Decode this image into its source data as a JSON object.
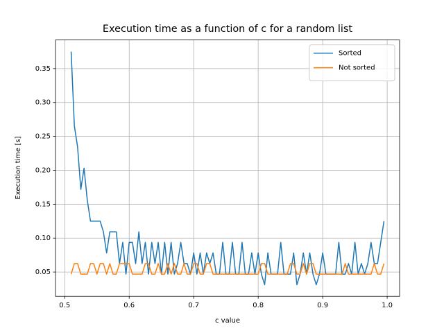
{
  "chart_data": {
    "type": "line",
    "title": "Execution time as a function of c for a random list",
    "x_label": "c value",
    "y_label": "Execution time [s]",
    "x": [
      0.51,
      0.515,
      0.52,
      0.525,
      0.53,
      0.535,
      0.54,
      0.545,
      0.55,
      0.555,
      0.56,
      0.565,
      0.57,
      0.575,
      0.58,
      0.585,
      0.59,
      0.595,
      0.6,
      0.605,
      0.61,
      0.615,
      0.62,
      0.625,
      0.63,
      0.635,
      0.64,
      0.645,
      0.65,
      0.655,
      0.66,
      0.665,
      0.67,
      0.675,
      0.68,
      0.685,
      0.69,
      0.695,
      0.7,
      0.705,
      0.71,
      0.715,
      0.72,
      0.725,
      0.73,
      0.735,
      0.74,
      0.745,
      0.75,
      0.755,
      0.76,
      0.765,
      0.77,
      0.775,
      0.78,
      0.785,
      0.79,
      0.795,
      0.8,
      0.805,
      0.81,
      0.815,
      0.82,
      0.825,
      0.83,
      0.835,
      0.84,
      0.845,
      0.85,
      0.855,
      0.86,
      0.865,
      0.87,
      0.875,
      0.88,
      0.885,
      0.89,
      0.895,
      0.9,
      0.905,
      0.91,
      0.915,
      0.92,
      0.925,
      0.93,
      0.935,
      0.94,
      0.945,
      0.95,
      0.955,
      0.96,
      0.965,
      0.97,
      0.975,
      0.98,
      0.985,
      0.99,
      0.995
    ],
    "series": [
      {
        "name": "Sorted",
        "color": "#1f77b4",
        "values": [
          0.375,
          0.265625,
          0.234375,
          0.171875,
          0.203125,
          0.15625,
          0.125,
          0.125,
          0.125,
          0.125,
          0.109375,
          0.078125,
          0.109375,
          0.109375,
          0.109375,
          0.0625,
          0.09375,
          0.046875,
          0.09375,
          0.09375,
          0.0625,
          0.109375,
          0.0625,
          0.09375,
          0.046875,
          0.09375,
          0.0625,
          0.09375,
          0.046875,
          0.09375,
          0.046875,
          0.09375,
          0.046875,
          0.0625,
          0.09375,
          0.0625,
          0.0625,
          0.046875,
          0.078125,
          0.046875,
          0.078125,
          0.046875,
          0.078125,
          0.0625,
          0.078125,
          0.046875,
          0.046875,
          0.09375,
          0.046875,
          0.046875,
          0.09375,
          0.046875,
          0.046875,
          0.09375,
          0.046875,
          0.046875,
          0.078125,
          0.046875,
          0.078125,
          0.046875,
          0.03125,
          0.078125,
          0.046875,
          0.046875,
          0.046875,
          0.09375,
          0.046875,
          0.046875,
          0.046875,
          0.078125,
          0.03125,
          0.046875,
          0.078125,
          0.046875,
          0.078125,
          0.046875,
          0.03125,
          0.046875,
          0.078125,
          0.046875,
          0.046875,
          0.046875,
          0.046875,
          0.09375,
          0.046875,
          0.046875,
          0.0625,
          0.046875,
          0.09375,
          0.046875,
          0.0625,
          0.046875,
          0.0625,
          0.09375,
          0.0625,
          0.0625,
          0.09375,
          0.125
        ]
      },
      {
        "name": "Not sorted",
        "color": "#ff7f0e",
        "values": [
          0.046875,
          0.0625,
          0.0625,
          0.046875,
          0.046875,
          0.046875,
          0.0625,
          0.0625,
          0.046875,
          0.0625,
          0.0625,
          0.046875,
          0.0625,
          0.046875,
          0.046875,
          0.0625,
          0.0625,
          0.0625,
          0.0625,
          0.046875,
          0.046875,
          0.046875,
          0.046875,
          0.0625,
          0.0625,
          0.046875,
          0.046875,
          0.0625,
          0.046875,
          0.046875,
          0.0625,
          0.046875,
          0.0625,
          0.046875,
          0.046875,
          0.0625,
          0.046875,
          0.046875,
          0.0625,
          0.0625,
          0.046875,
          0.046875,
          0.0625,
          0.0625,
          0.046875,
          0.046875,
          0.046875,
          0.046875,
          0.046875,
          0.046875,
          0.046875,
          0.046875,
          0.046875,
          0.046875,
          0.046875,
          0.046875,
          0.046875,
          0.046875,
          0.046875,
          0.0625,
          0.0625,
          0.046875,
          0.046875,
          0.046875,
          0.046875,
          0.046875,
          0.046875,
          0.046875,
          0.0625,
          0.0625,
          0.046875,
          0.046875,
          0.0625,
          0.046875,
          0.0625,
          0.0625,
          0.046875,
          0.046875,
          0.046875,
          0.046875,
          0.046875,
          0.046875,
          0.046875,
          0.046875,
          0.046875,
          0.0625,
          0.046875,
          0.046875,
          0.046875,
          0.046875,
          0.046875,
          0.046875,
          0.046875,
          0.046875,
          0.0625,
          0.046875,
          0.046875,
          0.0625
        ]
      }
    ],
    "xlim": [
      0.48575,
      1.01925
    ],
    "xticks": [
      0.5,
      0.6,
      0.7,
      0.8,
      0.9,
      {
        "value": 1,
        "label": "1.0"
      }
    ],
    "ylim": [
      0.0141,
      0.3922
    ],
    "yticks": [
      0.05,
      {
        "value": 0.1,
        "label": "0.10"
      },
      0.15,
      {
        "value": 0.2,
        "label": "0.20"
      },
      0.25,
      {
        "value": 0.3,
        "label": "0.30"
      },
      0.35
    ],
    "grid": true,
    "legend": "upper right"
  }
}
